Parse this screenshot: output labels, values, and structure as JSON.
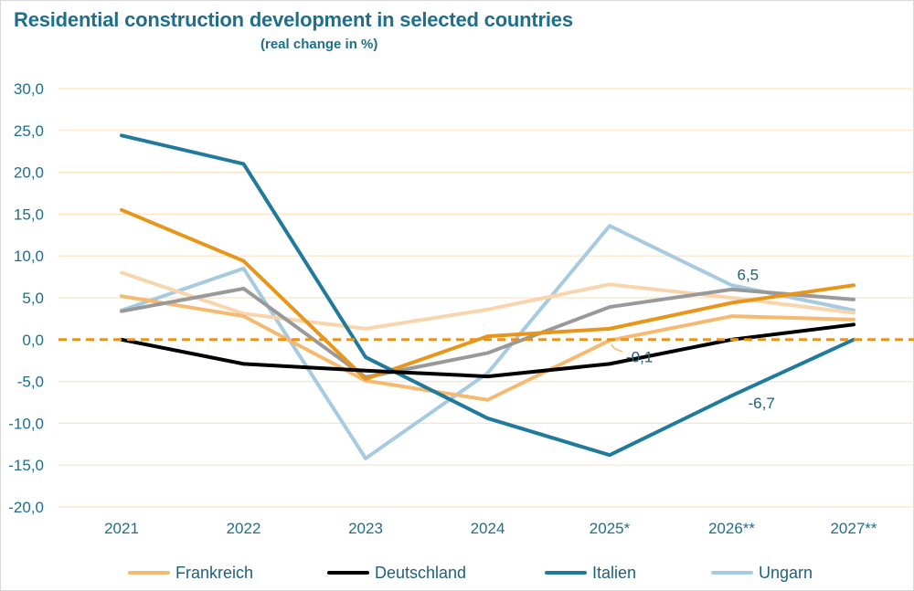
{
  "chart_data": {
    "type": "line",
    "title": "Residential construction development in selected countries",
    "subtitle": "(real change in %)",
    "categories": [
      "2021",
      "2022",
      "2023",
      "2024",
      "2025*",
      "2026**",
      "2027**"
    ],
    "ylim": [
      -20,
      30
    ],
    "yticks": [
      "30,0",
      "25,0",
      "20,0",
      "15,0",
      "10,0",
      "5,0",
      "0,0",
      "-5,0",
      "-10,0",
      "-15,0",
      "-20,0"
    ],
    "ytick_values": [
      30,
      25,
      20,
      15,
      10,
      5,
      0,
      -5,
      -10,
      -15,
      -20
    ],
    "grid": true,
    "zero_line": {
      "color": "#e8941a",
      "style": "dashed"
    },
    "legend_position": "bottom",
    "series": [
      {
        "name": "Frankreich",
        "color": "#f5b970",
        "values": [
          5.2,
          2.8,
          -4.9,
          -7.2,
          -0.1,
          2.8,
          2.4
        ],
        "in_legend": true
      },
      {
        "name": "Deutschland",
        "color": "#000000",
        "values": [
          0.0,
          -2.9,
          -3.7,
          -4.4,
          -2.9,
          0.0,
          1.8
        ],
        "in_legend": true
      },
      {
        "name": "Italien",
        "color": "#1f7a9c",
        "values": [
          24.4,
          21.0,
          -2.1,
          -9.4,
          -13.8,
          -6.7,
          0.0
        ],
        "in_legend": true
      },
      {
        "name": "Ungarn",
        "color": "#a6cbe0",
        "values": [
          3.5,
          8.5,
          -14.2,
          -4.0,
          13.6,
          6.5,
          3.5
        ],
        "in_legend": true
      },
      {
        "name": "",
        "color": "#e8961a",
        "values": [
          15.5,
          9.4,
          -4.7,
          0.4,
          1.3,
          4.4,
          6.5
        ],
        "in_legend": false
      },
      {
        "name": "",
        "color": "#999999",
        "values": [
          3.4,
          6.1,
          -4.5,
          -1.6,
          3.9,
          6.0,
          4.8
        ],
        "in_legend": false
      },
      {
        "name": "",
        "color": "#f9d5ad",
        "values": [
          8.0,
          3.1,
          1.3,
          3.6,
          6.6,
          5.0,
          3.2
        ],
        "in_legend": false
      }
    ],
    "annotations": [
      {
        "text": "6,5",
        "series": "Ungarn",
        "category": "2026**"
      },
      {
        "text": "-0,1",
        "series": "Frankreich",
        "category": "2025*"
      },
      {
        "text": "-6,7",
        "series": "Italien",
        "category": "2026**"
      }
    ]
  },
  "legend": [
    {
      "label": "Frankreich",
      "color": "#f5b970"
    },
    {
      "label": "Deutschland",
      "color": "#000000"
    },
    {
      "label": "Italien",
      "color": "#1f7a9c"
    },
    {
      "label": "Ungarn",
      "color": "#a6cbe0"
    }
  ]
}
